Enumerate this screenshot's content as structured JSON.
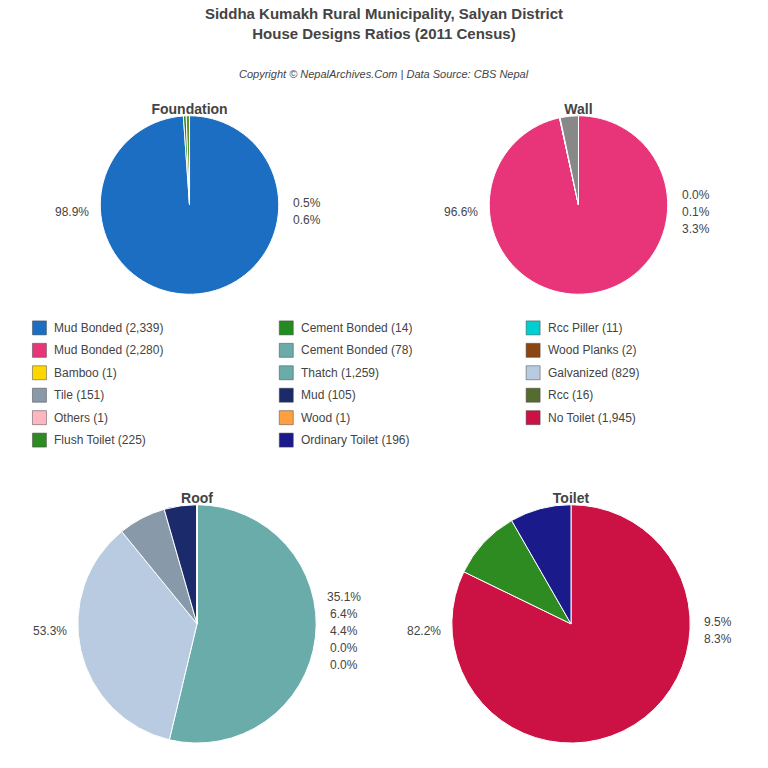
{
  "title": "Siddha Kumakh Rural Municipality, Salyan District",
  "subtitle": "House Designs Ratios (2011 Census)",
  "annotations": [
    "Copyright © NepalArchives.Com | Data Source: CBS Nepal"
  ],
  "chart_data": [
    {
      "type": "pie",
      "title": "Foundation",
      "values": [
        98.9,
        0.5,
        0.6
      ],
      "value_labels": [
        "98.9%",
        "0.5%",
        "0.6%"
      ],
      "colors": [
        "#1B6EC2",
        "#228B22",
        "#6B8E23"
      ],
      "data_labels": true
    },
    {
      "type": "pie",
      "title": "Wall",
      "values": [
        96.6,
        0.0,
        0.1,
        3.3
      ],
      "value_labels": [
        "96.6%",
        "0.0%",
        "0.1%",
        "3.3%"
      ],
      "colors": [
        "#E8357A",
        "#999999",
        "#AAAAAA",
        "#888888"
      ],
      "data_labels": true
    },
    {
      "type": "pie",
      "title": "Roof",
      "values": [
        53.3,
        35.1,
        6.4,
        4.4,
        0.0,
        0.0
      ],
      "value_labels": [
        "53.3%",
        "35.1%",
        "6.4%",
        "4.4%",
        "0.0%",
        "0.0%"
      ],
      "colors": [
        "#6AACAA",
        "#B8CBE0",
        "#8899AA",
        "#1B2A6B",
        "#FFA040",
        "#336633"
      ],
      "data_labels": true
    },
    {
      "type": "pie",
      "title": "Toilet",
      "values": [
        82.2,
        9.5,
        8.3
      ],
      "value_labels": [
        "82.2%",
        "9.5%",
        "8.3%"
      ],
      "colors": [
        "#CC1144",
        "#2E8B22",
        "#1A1A8B"
      ],
      "data_labels": true
    }
  ],
  "series": [
    {
      "name": "Mud Bonded (2,339)",
      "color": "#1B6EC2"
    },
    {
      "name": "Mud Bonded (2,280)",
      "color": "#E8357A"
    },
    {
      "name": "Bamboo (1)",
      "color": "#FFD700"
    },
    {
      "name": "Tile (151)",
      "color": "#8899AA"
    },
    {
      "name": "Others (1)",
      "color": "#FFB6C1"
    },
    {
      "name": "Flush Toilet (225)",
      "color": "#2E8B22"
    },
    {
      "name": "Cement Bonded (14)",
      "color": "#228B22"
    },
    {
      "name": "Cement Bonded (78)",
      "color": "#6AACAA"
    },
    {
      "name": "Thatch (1,259)",
      "color": "#6AACAA"
    },
    {
      "name": "Mud (105)",
      "color": "#1B2A6B"
    },
    {
      "name": "Wood (1)",
      "color": "#FFA040"
    },
    {
      "name": "Ordinary Toilet (196)",
      "color": "#1A1A8B"
    },
    {
      "name": "Rcc Piller (11)",
      "color": "#00CED1"
    },
    {
      "name": "Wood Planks (2)",
      "color": "#8B4513"
    },
    {
      "name": "Galvanized (829)",
      "color": "#B8CBE0"
    },
    {
      "name": "Rcc (16)",
      "color": "#556B2F"
    },
    {
      "name": "No Toilet (1,945)",
      "color": "#CC1144"
    }
  ]
}
